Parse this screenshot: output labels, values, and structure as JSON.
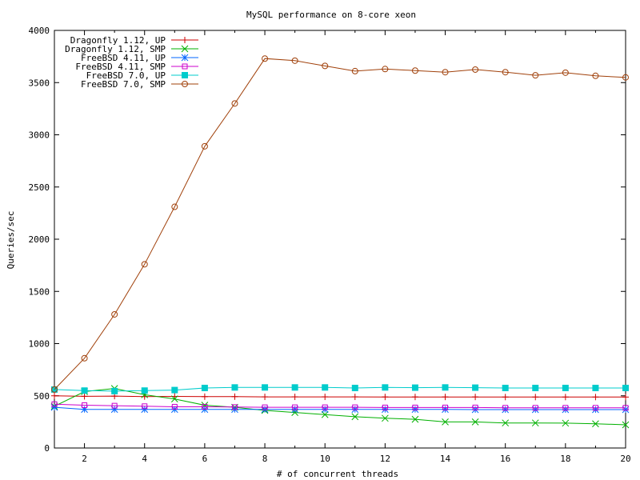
{
  "chart_data": {
    "type": "line",
    "title": "MySQL performance on 8-core xeon",
    "xlabel": "# of concurrent threads",
    "ylabel": "Queries/sec",
    "xlim": [
      1,
      20
    ],
    "ylim": [
      0,
      4000
    ],
    "xticks": [
      2,
      4,
      6,
      8,
      10,
      12,
      14,
      16,
      18,
      20
    ],
    "yticks": [
      0,
      500,
      1000,
      1500,
      2000,
      2500,
      3000,
      3500,
      4000
    ],
    "grid": false,
    "legend_position": "top-left",
    "x": [
      1,
      2,
      3,
      4,
      5,
      6,
      7,
      8,
      9,
      10,
      11,
      12,
      13,
      14,
      15,
      16,
      17,
      18,
      19,
      20
    ],
    "series": [
      {
        "name": "Dragonfly 1.12, UP",
        "color": "#cc0000",
        "marker": "plus",
        "values": [
          500,
          495,
          497,
          493,
          494,
          492,
          492,
          490,
          490,
          490,
          490,
          489,
          489,
          489,
          489,
          488,
          488,
          488,
          488,
          488
        ]
      },
      {
        "name": "Dragonfly 1.12, SMP",
        "color": "#00b000",
        "marker": "cross",
        "values": [
          400,
          540,
          570,
          510,
          470,
          410,
          390,
          360,
          340,
          320,
          300,
          285,
          275,
          250,
          250,
          240,
          240,
          238,
          232,
          222
        ]
      },
      {
        "name": "FreeBSD 4.11, UP",
        "color": "#0066ff",
        "marker": "star",
        "values": [
          390,
          370,
          370,
          370,
          370,
          370,
          370,
          370,
          370,
          370,
          370,
          370,
          370,
          370,
          368,
          368,
          368,
          368,
          368,
          368
        ]
      },
      {
        "name": "FreeBSD 4.11, SMP",
        "color": "#cc00cc",
        "marker": "square",
        "values": [
          420,
          410,
          405,
          400,
          395,
          395,
          392,
          390,
          390,
          390,
          390,
          388,
          388,
          388,
          388,
          385,
          385,
          385,
          385,
          385
        ]
      },
      {
        "name": "FreeBSD 7.0, UP",
        "color": "#00cccc",
        "marker": "filled-square",
        "values": [
          560,
          550,
          545,
          550,
          555,
          575,
          580,
          580,
          580,
          580,
          575,
          580,
          578,
          580,
          578,
          575,
          575,
          575,
          575,
          575
        ]
      },
      {
        "name": "FreeBSD 7.0, SMP",
        "color": "#a0400a",
        "marker": "circle",
        "values": [
          560,
          860,
          1280,
          1760,
          2310,
          2890,
          3300,
          3730,
          3710,
          3660,
          3610,
          3630,
          3615,
          3600,
          3625,
          3600,
          3570,
          3595,
          3565,
          3550
        ]
      }
    ]
  }
}
